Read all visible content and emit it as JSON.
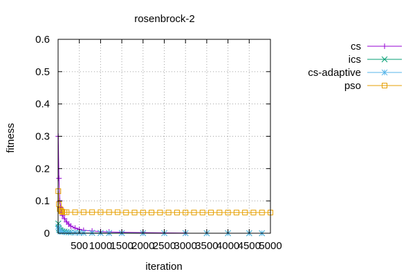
{
  "chart_data": {
    "type": "line",
    "title": "rosenbrock-2",
    "xlabel": "iteration",
    "ylabel": "fitness",
    "xlim": [
      0,
      5000
    ],
    "ylim": [
      0,
      0.6
    ],
    "x_ticks": [
      500,
      1000,
      1500,
      2000,
      2500,
      3000,
      3500,
      4000,
      4500,
      5000
    ],
    "x_tick_labels": [
      "500",
      "1000",
      "1500",
      "2000",
      "2500",
      "3000",
      "3500",
      "4000",
      "4500",
      "5000"
    ],
    "y_ticks": [
      0,
      0.1,
      0.2,
      0.3,
      0.4,
      0.5,
      0.6
    ],
    "y_tick_labels": [
      "0",
      "0.1",
      "0.2",
      "0.3",
      "0.4",
      "0.5",
      "0.6"
    ],
    "grid": true,
    "legend_position": "outside-right-top",
    "series": [
      {
        "name": "cs",
        "color": "#9400d3",
        "marker": "plus",
        "x": [
          5,
          20,
          40,
          60,
          80,
          100,
          150,
          200,
          250,
          300,
          400,
          500,
          600,
          800,
          1000,
          1200,
          1500,
          2000,
          2500,
          3000
        ],
        "y": [
          0.3,
          0.17,
          0.1,
          0.08,
          0.065,
          0.055,
          0.045,
          0.035,
          0.028,
          0.022,
          0.016,
          0.012,
          0.009,
          0.007,
          0.005,
          0.004,
          0.003,
          0.002,
          0.001,
          0.0005
        ]
      },
      {
        "name": "ics",
        "color": "#009e73",
        "marker": "cross",
        "x": [
          5,
          20,
          40,
          60,
          100,
          150,
          200,
          250,
          300,
          400,
          500,
          600,
          800,
          1000,
          1200,
          1500,
          2000,
          2500,
          3000,
          3500,
          4000,
          4500,
          4800
        ],
        "y": [
          0.03,
          0.015,
          0.01,
          0.008,
          0.006,
          0.005,
          0.004,
          0.003,
          0.0025,
          0.002,
          0.0015,
          0.001,
          0.001,
          0.0008,
          0.0005,
          0.0004,
          0.0002,
          0.0001,
          0.0001,
          0.0,
          0.0,
          0.0,
          0.0
        ]
      },
      {
        "name": "cs-adaptive",
        "color": "#56b4e9",
        "marker": "star",
        "x": [
          5,
          20,
          60,
          100,
          200,
          300,
          400,
          500,
          600,
          800,
          1000,
          1200,
          1500,
          2000,
          2500,
          3000,
          3500,
          4000,
          4500,
          4800
        ],
        "y": [
          0.02,
          0.01,
          0.005,
          0.004,
          0.003,
          0.002,
          0.0015,
          0.001,
          0.001,
          0.0008,
          0.0005,
          0.0003,
          0.0002,
          0.0001,
          0.0,
          0.0,
          0.0,
          0.0,
          0.0,
          0.0
        ]
      },
      {
        "name": "pso",
        "color": "#e69f00",
        "marker": "box",
        "x": [
          5,
          20,
          40,
          60,
          80,
          100,
          150,
          200,
          400,
          600,
          800,
          1000,
          1200,
          1400,
          1600,
          1800,
          2000,
          2200,
          2400,
          2600,
          2800,
          3000,
          3200,
          3400,
          3600,
          3800,
          4000,
          4200,
          4400,
          4600,
          4800,
          5000
        ],
        "y": [
          0.13,
          0.09,
          0.075,
          0.07,
          0.068,
          0.066,
          0.065,
          0.065,
          0.065,
          0.065,
          0.065,
          0.065,
          0.065,
          0.065,
          0.064,
          0.064,
          0.064,
          0.064,
          0.064,
          0.064,
          0.064,
          0.064,
          0.064,
          0.064,
          0.064,
          0.064,
          0.064,
          0.064,
          0.064,
          0.064,
          0.064,
          0.064
        ]
      }
    ]
  }
}
